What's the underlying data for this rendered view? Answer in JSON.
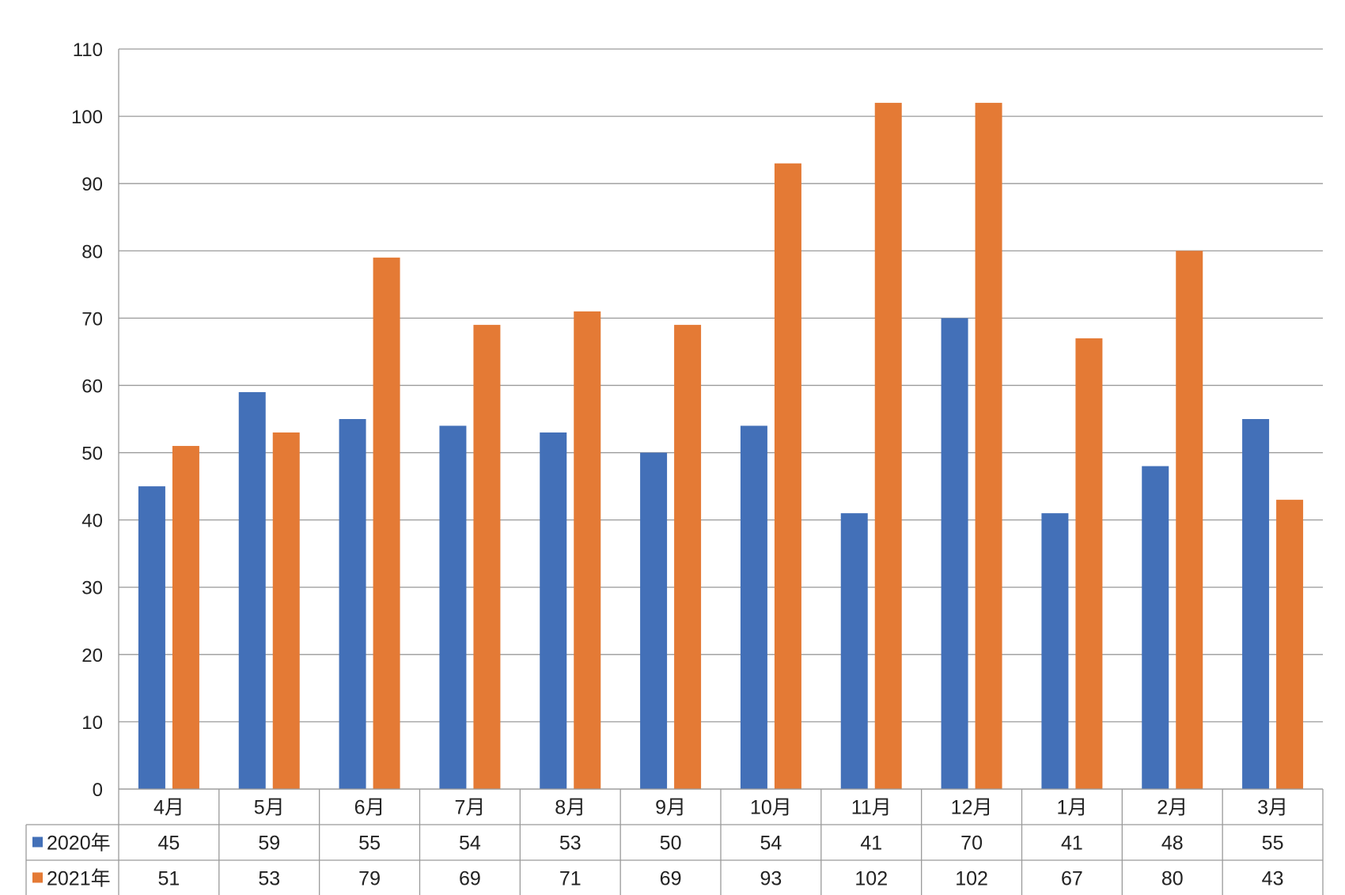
{
  "chart_data": {
    "type": "bar",
    "categories": [
      "4月",
      "5月",
      "6月",
      "7月",
      "8月",
      "9月",
      "10月",
      "11月",
      "12月",
      "1月",
      "2月",
      "3月"
    ],
    "series": [
      {
        "name": "2020年",
        "color": "#4370b8",
        "values": [
          45,
          59,
          55,
          54,
          53,
          50,
          54,
          41,
          70,
          41,
          48,
          55
        ]
      },
      {
        "name": "2021年",
        "color": "#e47a35",
        "values": [
          51,
          53,
          79,
          69,
          71,
          69,
          93,
          102,
          102,
          67,
          80,
          43
        ]
      }
    ],
    "ylim": [
      0,
      110
    ],
    "ytick_labels": [
      "0",
      "10",
      "20",
      "30",
      "40",
      "50",
      "60",
      "70",
      "80",
      "90",
      "100",
      "110"
    ],
    "grid": true,
    "legend": "data-table",
    "data_table": true,
    "title": "",
    "xlabel": "",
    "ylabel": ""
  }
}
